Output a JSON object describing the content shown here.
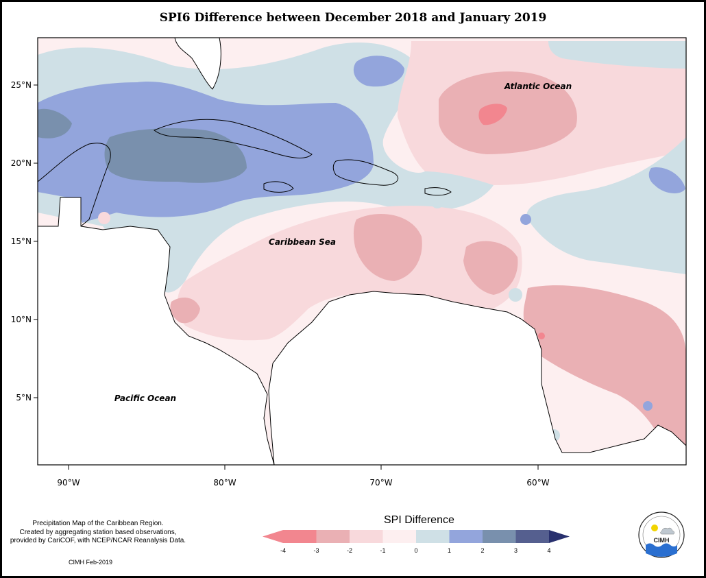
{
  "title": "SPI6 Difference between December 2018 and January 2019",
  "map": {
    "lat_labels": [
      "25°N",
      "20°N",
      "15°N",
      "10°N",
      "5°N"
    ],
    "lon_labels": [
      "90°W",
      "80°W",
      "70°W",
      "60°W"
    ],
    "ocean_labels": {
      "atlantic": "Atlantic Ocean",
      "caribbean": "Caribbean Sea",
      "pacific": "Pacific Ocean"
    }
  },
  "legend": {
    "title": "SPI Difference",
    "ticks": [
      "-4",
      "-3",
      "-2",
      "-1",
      "0",
      "1",
      "2",
      "3",
      "4"
    ],
    "colors": [
      "#f2868f",
      "#eab0b4",
      "#f8d9dc",
      "#fdeff0",
      "#cfe0e6",
      "#93a5dc",
      "#7990ad",
      "#555f8f"
    ],
    "left_arrow_color": "#f2868f",
    "right_arrow_color": "#28306e"
  },
  "footnote": [
    "Precipitation Map of the Caribbean Region.",
    "Created by aggregating station based observations,",
    "provided by CariCOF, with NCEP/NCAR Reanalysis Data."
  ],
  "credit": "CIMH Feb-2019",
  "logo_text": "CIMH"
}
